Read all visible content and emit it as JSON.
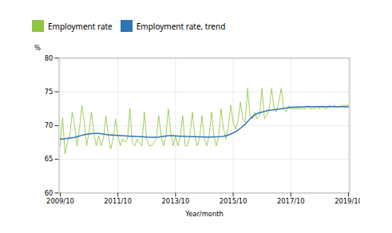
{
  "chart_data": {
    "type": "line",
    "title": "",
    "xlabel": "Year/month",
    "ylabel": "%",
    "categories": [
      "2009/10",
      null,
      null,
      null,
      null,
      null,
      null,
      null,
      null,
      null,
      null,
      null,
      null,
      null,
      null,
      null,
      null,
      null,
      null,
      null,
      null,
      null,
      null,
      null,
      "2011/10",
      null,
      null,
      null,
      null,
      null,
      null,
      null,
      null,
      null,
      null,
      null,
      null,
      null,
      null,
      null,
      null,
      null,
      null,
      null,
      null,
      null,
      null,
      null,
      "2013/10",
      null,
      null,
      null,
      null,
      null,
      null,
      null,
      null,
      null,
      null,
      null,
      null,
      null,
      null,
      null,
      null,
      null,
      null,
      null,
      null,
      null,
      null,
      null,
      "2015/10",
      null,
      null,
      null,
      null,
      null,
      null,
      null,
      null,
      null,
      null,
      null,
      null,
      null,
      null,
      null,
      null,
      null,
      null,
      null,
      null,
      null,
      null,
      null,
      "2017/10",
      null,
      null,
      null,
      null,
      null,
      null,
      null,
      null,
      null,
      null,
      null,
      null,
      null,
      null,
      null,
      null,
      null,
      null,
      null,
      null,
      null,
      null,
      null,
      "2019/10"
    ],
    "ylim": [
      60,
      80
    ],
    "yticks": [
      60,
      65,
      70,
      75,
      80
    ],
    "grid": true,
    "legend": "top",
    "series": [
      {
        "name": "Employment rate",
        "color": "#8dc63f",
        "values": [
          67.0,
          71.2,
          65.8,
          67.5,
          68.5,
          72.0,
          70.0,
          67.0,
          69.5,
          73.0,
          70.5,
          67.0,
          69.0,
          72.0,
          69.0,
          67.0,
          68.5,
          67.0,
          68.0,
          71.5,
          68.5,
          66.5,
          68.0,
          71.0,
          68.5,
          67.0,
          68.0,
          67.5,
          68.0,
          72.5,
          67.5,
          67.0,
          68.0,
          67.5,
          67.0,
          72.0,
          68.0,
          67.0,
          67.0,
          67.5,
          68.0,
          71.5,
          68.5,
          67.0,
          68.5,
          72.5,
          69.0,
          67.0,
          68.5,
          67.0,
          68.5,
          71.5,
          67.0,
          67.0,
          68.5,
          72.0,
          68.5,
          67.0,
          68.0,
          71.5,
          68.0,
          67.0,
          68.5,
          72.0,
          68.5,
          67.0,
          68.5,
          72.5,
          69.5,
          68.0,
          70.0,
          73.0,
          70.5,
          69.5,
          70.5,
          73.5,
          71.0,
          70.5,
          75.5,
          71.5,
          71.0,
          72.0,
          71.0,
          71.5,
          75.5,
          71.0,
          71.5,
          72.5,
          75.5,
          72.5,
          72.0,
          73.5,
          75.5,
          72.5,
          72.0,
          73.0,
          72.5,
          72.5,
          72.5,
          72.5,
          72.5,
          72.5,
          72.5,
          73.0,
          72.5,
          72.5,
          72.5,
          72.8,
          72.5,
          73.0,
          72.5,
          72.5,
          73.0,
          72.8,
          73.0,
          72.8,
          72.8,
          73.0,
          73.0,
          73.0,
          73.0
        ]
      },
      {
        "name": "Employment rate, trend",
        "color": "#2e75b6",
        "values": [
          68.0,
          68.0,
          68.05,
          68.1,
          68.15,
          68.2,
          68.25,
          68.35,
          68.45,
          68.55,
          68.65,
          68.7,
          68.75,
          68.8,
          68.82,
          68.83,
          68.82,
          68.8,
          68.75,
          68.68,
          68.63,
          68.6,
          68.58,
          68.57,
          68.55,
          68.52,
          68.5,
          68.47,
          68.45,
          68.43,
          68.42,
          68.4,
          68.38,
          68.37,
          68.35,
          68.33,
          68.3,
          68.28,
          68.27,
          68.26,
          68.27,
          68.3,
          68.35,
          68.4,
          68.45,
          68.5,
          68.52,
          68.5,
          68.48,
          68.45,
          68.43,
          68.42,
          68.4,
          68.38,
          68.37,
          68.36,
          68.35,
          68.34,
          68.33,
          68.32,
          68.31,
          68.3,
          68.3,
          68.31,
          68.32,
          68.33,
          68.35,
          68.38,
          68.42,
          68.5,
          68.6,
          68.75,
          68.9,
          69.1,
          69.3,
          69.6,
          69.9,
          70.2,
          70.6,
          71.0,
          71.3,
          71.6,
          71.8,
          71.9,
          72.0,
          72.1,
          72.2,
          72.25,
          72.3,
          72.35,
          72.4,
          72.45,
          72.5,
          72.55,
          72.6,
          72.65,
          72.7,
          72.72,
          72.74,
          72.75,
          72.76,
          72.77,
          72.78,
          72.79,
          72.8,
          72.8,
          72.8,
          72.8,
          72.8,
          72.8,
          72.8,
          72.8,
          72.8,
          72.8,
          72.8,
          72.8,
          72.8,
          72.8,
          72.8,
          72.8,
          72.8
        ]
      }
    ]
  }
}
